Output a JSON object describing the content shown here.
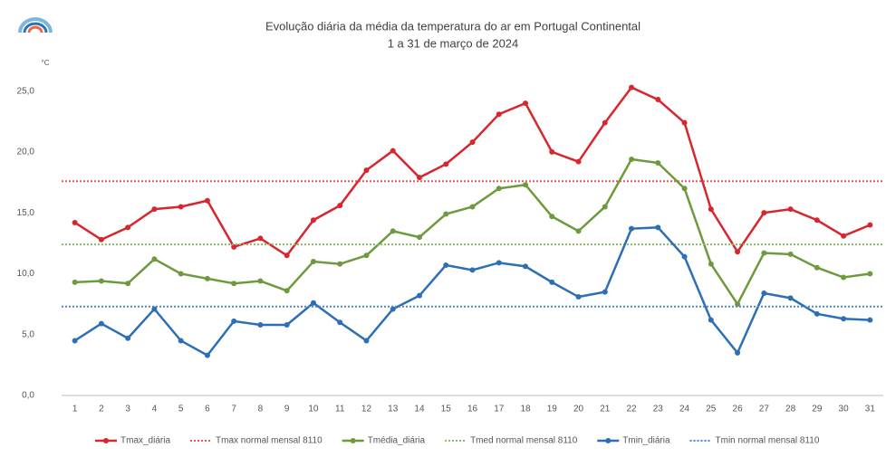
{
  "chart_data": {
    "type": "line",
    "title": "Evolução diária da média da temperatura do ar em Portugal Continental",
    "subtitle": "1 a 31 de março de 2024",
    "y_label": "°C",
    "categories": [
      "1",
      "2",
      "3",
      "4",
      "5",
      "6",
      "7",
      "8",
      "9",
      "10",
      "11",
      "12",
      "13",
      "14",
      "15",
      "16",
      "17",
      "18",
      "19",
      "20",
      "21",
      "22",
      "23",
      "24",
      "25",
      "26",
      "27",
      "28",
      "29",
      "30",
      "31"
    ],
    "ylim": [
      0,
      27.5
    ],
    "yticks": [
      {
        "value": 0,
        "label": "0,0"
      },
      {
        "value": 5,
        "label": "5,0"
      },
      {
        "value": 10,
        "label": "10,0"
      },
      {
        "value": 15,
        "label": "15,0"
      },
      {
        "value": 20,
        "label": "20,0"
      },
      {
        "value": 25,
        "label": "25,0"
      }
    ],
    "grid": false,
    "legend": "bottom",
    "series": [
      {
        "name": "Tmax_diária",
        "color": "#d7262d",
        "values": [
          14.2,
          12.8,
          13.8,
          15.3,
          15.5,
          16.0,
          12.2,
          12.9,
          11.5,
          14.4,
          15.6,
          18.5,
          20.1,
          17.9,
          19.0,
          20.8,
          23.1,
          24.0,
          20.0,
          19.2,
          22.4,
          25.3,
          24.3,
          22.4,
          15.3,
          11.8,
          15.0,
          15.3,
          14.4,
          13.1,
          14.0
        ]
      },
      {
        "name": "Tmax normal mensal 8110",
        "color": "#e8545a",
        "value": 17.6
      },
      {
        "name": "Tmédia_diária",
        "color": "#6d9a3c",
        "values": [
          9.3,
          9.4,
          9.2,
          11.2,
          10.0,
          9.6,
          9.2,
          9.4,
          8.6,
          11.0,
          10.8,
          11.5,
          13.5,
          13.0,
          14.9,
          15.5,
          17.0,
          17.3,
          14.7,
          13.5,
          15.5,
          19.4,
          19.1,
          17.0,
          10.8,
          7.5,
          11.7,
          11.6,
          10.5,
          9.7,
          10.0
        ]
      },
      {
        "name": "Tmed normal mensal 8110",
        "color": "#8ab864",
        "value": 12.4
      },
      {
        "name": "Tmin_diária",
        "color": "#2e6eb5",
        "values": [
          4.5,
          5.9,
          4.7,
          7.1,
          4.5,
          3.3,
          6.1,
          5.8,
          5.8,
          7.6,
          6.0,
          4.5,
          7.1,
          8.2,
          10.7,
          10.3,
          10.9,
          10.6,
          9.3,
          8.1,
          8.5,
          13.7,
          13.8,
          11.4,
          6.2,
          3.5,
          8.4,
          8.0,
          6.7,
          6.3,
          6.2
        ]
      },
      {
        "name": "Tmin normal mensal 8110",
        "color": "#4a86cc",
        "value": 7.3
      }
    ]
  }
}
